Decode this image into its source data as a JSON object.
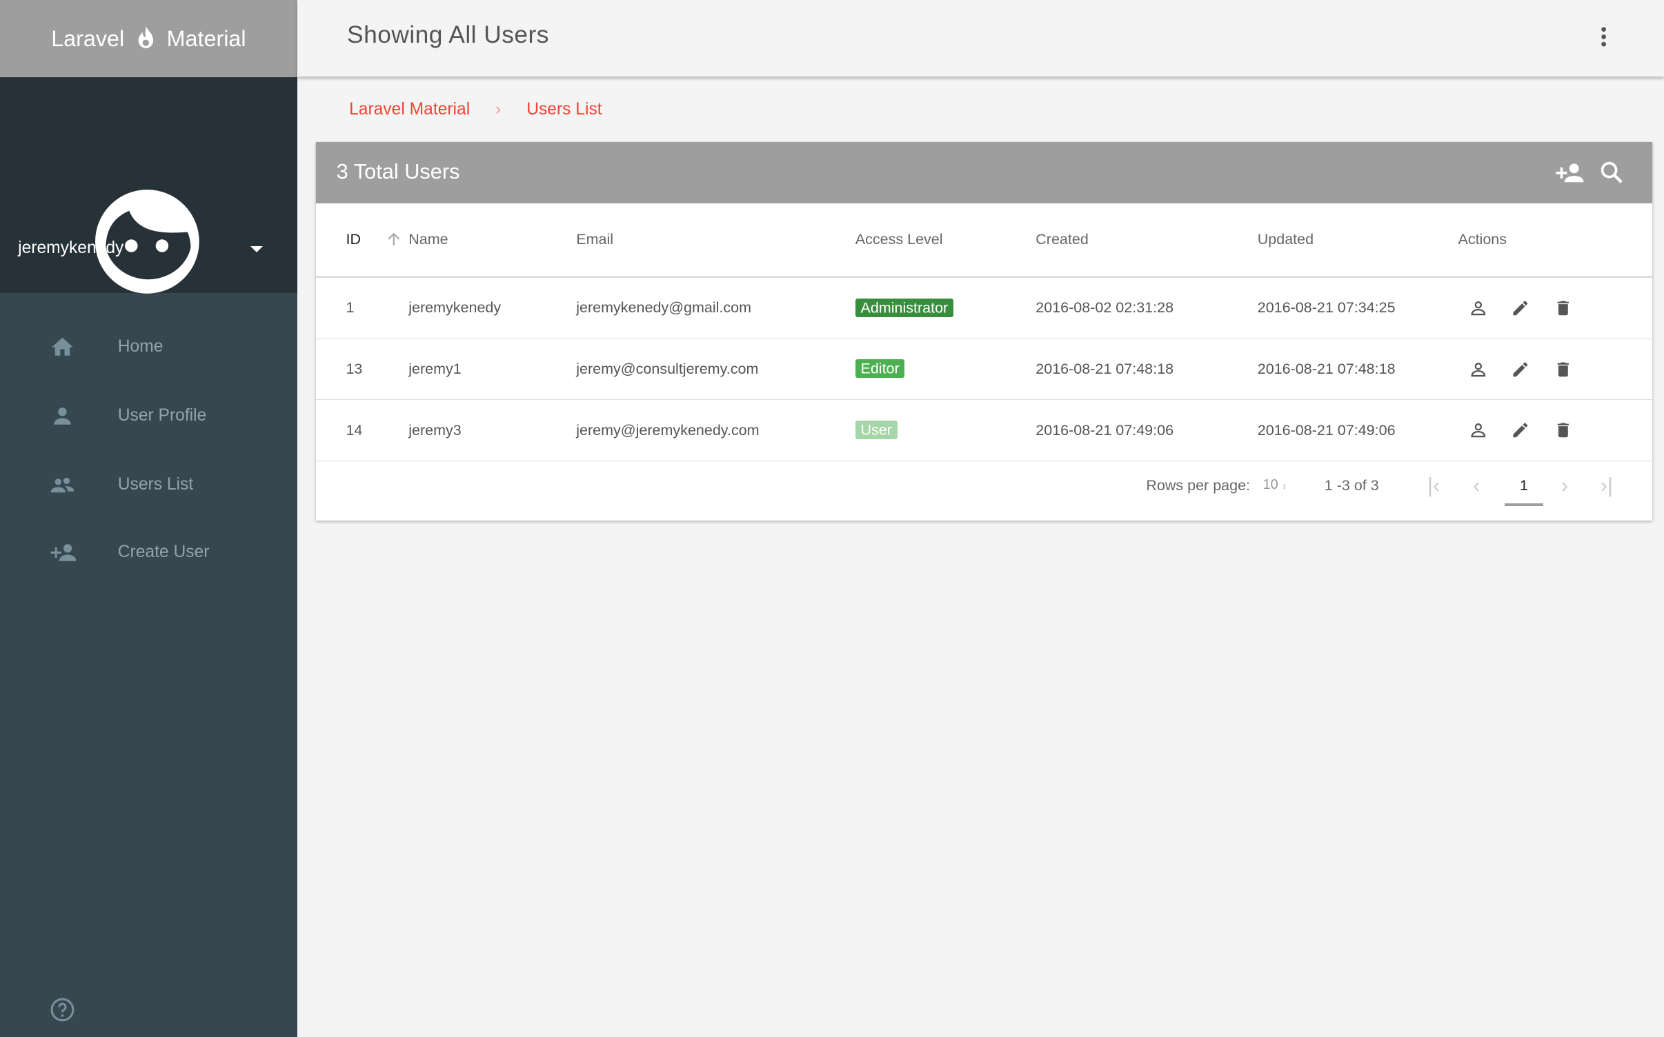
{
  "brand": {
    "left": "Laravel",
    "right": "Material",
    "icon": "flame-icon"
  },
  "user": {
    "name": "jeremykenedy"
  },
  "nav": [
    {
      "label": "Home",
      "icon": "home-icon"
    },
    {
      "label": "User Profile",
      "icon": "person-icon"
    },
    {
      "label": "Users List",
      "icon": "people-icon"
    },
    {
      "label": "Create User",
      "icon": "person-add-icon"
    }
  ],
  "header": {
    "title": "Showing All Users"
  },
  "breadcrumb": [
    "Laravel Material",
    "Users List"
  ],
  "card": {
    "title": "3 Total Users"
  },
  "table": {
    "columns": [
      "ID",
      "Name",
      "Email",
      "Access Level",
      "Created",
      "Updated",
      "Actions"
    ],
    "sort": {
      "column": "ID",
      "direction": "asc"
    },
    "rows": [
      {
        "id": "1",
        "name": "jeremykenedy",
        "email": "jeremykenedy@gmail.com",
        "level": "Administrator",
        "level_color": "#388e3c",
        "created": "2016-08-02 02:31:28",
        "updated": "2016-08-21 07:34:25"
      },
      {
        "id": "13",
        "name": "jeremy1",
        "email": "jeremy@consultjeremy.com",
        "level": "Editor",
        "level_color": "#4caf50",
        "created": "2016-08-21 07:48:18",
        "updated": "2016-08-21 07:48:18"
      },
      {
        "id": "14",
        "name": "jeremy3",
        "email": "jeremy@jeremykenedy.com",
        "level": "User",
        "level_color": "#a5d6a7",
        "created": "2016-08-21 07:49:06",
        "updated": "2016-08-21 07:49:06"
      }
    ]
  },
  "pagination": {
    "rows_label": "Rows per page:",
    "rows_value": "10",
    "range": "1 -3 of 3",
    "current_page": "1"
  },
  "colors": {
    "accent": "#f44336",
    "sidebar": "#37474f",
    "profile_bg": "#263238",
    "header_gray": "#9e9e9e"
  }
}
